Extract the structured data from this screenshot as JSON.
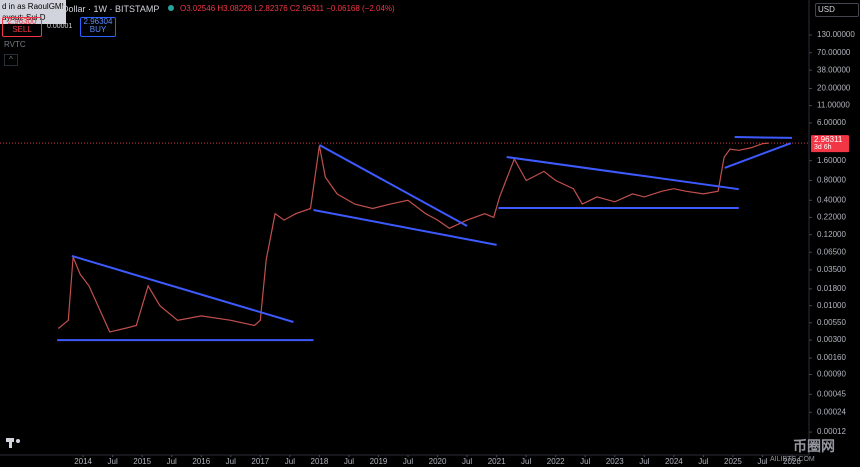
{
  "header": {
    "tooltip": [
      "d in as RaoulGMI",
      "ayout: Sui D"
    ],
    "symbol": "Dollar · 1W · BITSTAMP",
    "ohlc": "O3.02546 H3.08228 L2.82376 C2.96311 −0.06168 (−2.04%)",
    "sell_price": "2.96300",
    "sell_label": "SELL",
    "spread": "0.00001",
    "buy_price": "2.96304",
    "buy_label": "BUY",
    "indicator": "RVTC",
    "currency": "USD"
  },
  "chart_data": {
    "type": "line",
    "log_scale": true,
    "grid": false,
    "color": "#c0504d",
    "x": [
      2013.58,
      2013.75,
      2013.83,
      2013.95,
      2014.1,
      2014.3,
      2014.45,
      2014.7,
      2014.9,
      2015.0,
      2015.1,
      2015.3,
      2015.6,
      2016.0,
      2016.5,
      2016.9,
      2017.0,
      2017.1,
      2017.25,
      2017.4,
      2017.6,
      2017.85,
      2018.0,
      2018.1,
      2018.3,
      2018.6,
      2018.9,
      2019.2,
      2019.5,
      2019.8,
      2020.0,
      2020.2,
      2020.5,
      2020.8,
      2020.95,
      2021.05,
      2021.3,
      2021.5,
      2021.8,
      2022.0,
      2022.3,
      2022.45,
      2022.7,
      2023.0,
      2023.3,
      2023.5,
      2023.8,
      2024.0,
      2024.2,
      2024.5,
      2024.75,
      2024.85,
      2024.95,
      2025.1,
      2025.3,
      2025.5,
      2025.6
    ],
    "values": [
      0.0045,
      0.006,
      0.055,
      0.03,
      0.02,
      0.008,
      0.004,
      0.0045,
      0.005,
      0.01,
      0.02,
      0.01,
      0.006,
      0.007,
      0.006,
      0.005,
      0.006,
      0.05,
      0.25,
      0.2,
      0.25,
      0.3,
      2.7,
      0.9,
      0.5,
      0.35,
      0.3,
      0.35,
      0.4,
      0.25,
      0.2,
      0.15,
      0.2,
      0.25,
      0.22,
      0.45,
      1.7,
      0.8,
      1.1,
      0.8,
      0.6,
      0.35,
      0.45,
      0.38,
      0.5,
      0.45,
      0.55,
      0.6,
      0.55,
      0.5,
      0.55,
      1.8,
      2.4,
      2.3,
      2.5,
      2.9,
      2.96311
    ],
    "xlim": [
      2012.593,
      2026.288
    ],
    "ylim": [
      5.38e-05,
      443
    ],
    "xticks": [
      2014,
      {
        "value": 2014.5,
        "label": "Jul"
      },
      2015,
      {
        "value": 2015.5,
        "label": "Jul"
      },
      2016,
      {
        "value": 2016.5,
        "label": "Jul"
      },
      2017,
      {
        "value": 2017.5,
        "label": "Jul"
      },
      2018,
      {
        "value": 2018.5,
        "label": "Jul"
      },
      2019,
      {
        "value": 2019.5,
        "label": "Jul"
      },
      2020,
      {
        "value": 2020.5,
        "label": "Jul"
      },
      2021,
      {
        "value": 2021.5,
        "label": "Jul"
      },
      2022,
      {
        "value": 2022.5,
        "label": "Jul"
      },
      2023,
      {
        "value": 2023.5,
        "label": "Jul"
      },
      2024,
      {
        "value": 2024.5,
        "label": "Jul"
      },
      2025,
      {
        "value": 2025.5,
        "label": "Jul"
      },
      2026
    ],
    "yticks": [
      {
        "value": 130,
        "label": "130.00000"
      },
      {
        "value": 70,
        "label": "70.00000"
      },
      {
        "value": 38,
        "label": "38.00000"
      },
      {
        "value": 20,
        "label": "20.00000"
      },
      {
        "value": 11,
        "label": "11.00000"
      },
      {
        "value": 6,
        "label": "6.00000"
      },
      {
        "value": 1.6,
        "label": "1.60000"
      },
      {
        "value": 0.8,
        "label": "0.80000"
      },
      {
        "value": 0.4,
        "label": "0.40000"
      },
      {
        "value": 0.22,
        "label": "0.22000"
      },
      {
        "value": 0.12,
        "label": "0.12000"
      },
      {
        "value": 0.065,
        "label": "0.06500"
      },
      {
        "value": 0.035,
        "label": "0.03500"
      },
      {
        "value": 0.018,
        "label": "0.01800"
      },
      {
        "value": 0.01,
        "label": "0.01000"
      },
      {
        "value": 0.0055,
        "label": "0.00550"
      },
      {
        "value": 0.003,
        "label": "0.00300"
      },
      {
        "value": 0.0016,
        "label": "0.00160"
      },
      {
        "value": 0.0009,
        "label": "0.00090"
      },
      {
        "value": 0.00045,
        "label": "0.00045"
      },
      {
        "value": 0.00024,
        "label": "0.00024"
      },
      {
        "value": 0.00012,
        "label": "0.00012"
      }
    ],
    "last_price": 2.96311,
    "last_price_countdown": "3d 6h",
    "last_price_color": "#f23645",
    "trendline_color": "#3d5afe",
    "trendlines": [
      {
        "x": [
          2013.81,
          2017.56
        ],
        "values": [
          0.057,
          0.00565
        ]
      },
      {
        "x": [
          2013.56,
          2017.9
        ],
        "values": [
          0.003,
          0.003
        ]
      },
      {
        "x": [
          2018.0,
          2020.5
        ],
        "values": [
          2.77,
          0.163
        ]
      },
      {
        "x": [
          2017.9,
          2021.0
        ],
        "values": [
          0.285,
          0.084
        ]
      },
      {
        "x": [
          2021.17,
          2025.1
        ],
        "values": [
          1.82,
          0.59
        ]
      },
      {
        "x": [
          2021.03,
          2025.1
        ],
        "values": [
          0.305,
          0.305
        ]
      },
      {
        "x": [
          2025.03,
          2026.0
        ],
        "values": [
          3.66,
          3.55
        ]
      },
      {
        "x": [
          2024.86,
          2025.98
        ],
        "values": [
          1.24,
          2.95
        ]
      }
    ]
  },
  "watermark": [
    "币圈网",
    "AILIBTC.COM"
  ]
}
